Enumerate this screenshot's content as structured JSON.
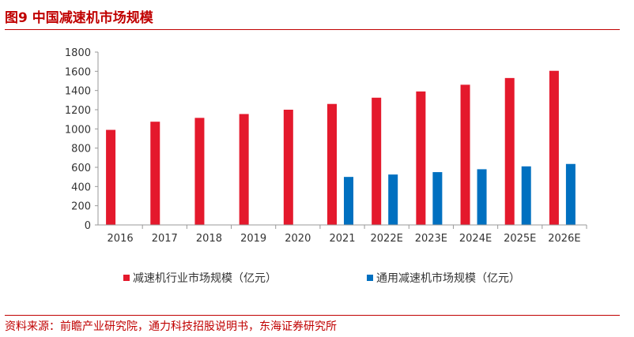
{
  "title": "图9  中国减速机市场规模",
  "source": "资料来源：前瞻产业研究院，通力科技招股说明书，东海证券研究所",
  "colors": {
    "accent": "#c00000",
    "industry": "#e4192c",
    "general": "#0070c0"
  },
  "chart_data": {
    "type": "bar",
    "categories": [
      "2016",
      "2017",
      "2018",
      "2019",
      "2020",
      "2021",
      "2022E",
      "2023E",
      "2024E",
      "2025E",
      "2026E"
    ],
    "series": [
      {
        "name": "减速机行业市场规模（亿元）",
        "values": [
          990,
          1075,
          1115,
          1155,
          1200,
          1260,
          1325,
          1390,
          1460,
          1530,
          1605
        ]
      },
      {
        "name": "通用减速机市场规模（亿元）",
        "values": [
          null,
          null,
          null,
          null,
          null,
          500,
          525,
          550,
          580,
          610,
          635
        ]
      }
    ],
    "ylim": [
      0,
      1800
    ],
    "yticks": [
      0,
      200,
      400,
      600,
      800,
      1000,
      1200,
      1400,
      1600,
      1800
    ],
    "grid": false,
    "legend": "bottom"
  }
}
